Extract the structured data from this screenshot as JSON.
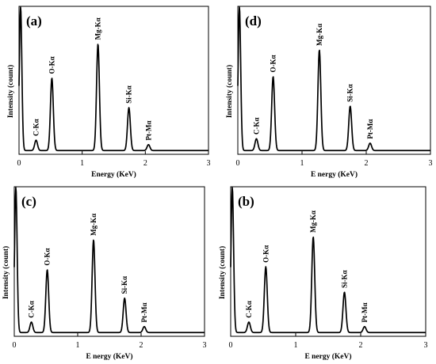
{
  "chart_data": [
    {
      "type": "line",
      "panel_label": "(a)",
      "xlabel": "Energy (KeV)",
      "ylabel": "Intensity (count)",
      "xlim": [
        0,
        3
      ],
      "xticks": [
        "0",
        "1",
        "2",
        "3"
      ],
      "grid": false,
      "series": [
        {
          "peaks": [
            {
              "label": "C-Kα",
              "energy": 0.27,
              "height": 0.07
            },
            {
              "label": "O-Kα",
              "energy": 0.52,
              "height": 0.49
            },
            {
              "label": "Mg-Kα",
              "energy": 1.25,
              "height": 0.72
            },
            {
              "label": "Si-Kα",
              "energy": 1.74,
              "height": 0.29
            },
            {
              "label": "Pt-Mα",
              "energy": 2.05,
              "height": 0.04
            }
          ]
        }
      ]
    },
    {
      "type": "line",
      "panel_label": "(d)",
      "xlabel": "E nergy (KeV)",
      "ylabel": "Intensity (count)",
      "xlim": [
        0,
        3
      ],
      "xticks": [
        "0",
        "1",
        "2",
        "3"
      ],
      "grid": false,
      "series": [
        {
          "peaks": [
            {
              "label": "C-Kα",
              "energy": 0.29,
              "height": 0.08
            },
            {
              "label": "O-Kα",
              "energy": 0.55,
              "height": 0.5
            },
            {
              "label": "Mg-Kα",
              "energy": 1.27,
              "height": 0.68
            },
            {
              "label": "Si-Kα",
              "energy": 1.75,
              "height": 0.3
            },
            {
              "label": "Pt-Mα",
              "energy": 2.06,
              "height": 0.05
            }
          ]
        }
      ]
    },
    {
      "type": "line",
      "panel_label": "(c)",
      "xlabel": "E nergy (KeV)",
      "ylabel": "Intensity (count)",
      "xlim": [
        0,
        3
      ],
      "xticks": [
        "0",
        "1",
        "2",
        "3"
      ],
      "grid": false,
      "series": [
        {
          "peaks": [
            {
              "label": "C-Kα",
              "energy": 0.27,
              "height": 0.07
            },
            {
              "label": "O-Kα",
              "energy": 0.52,
              "height": 0.42
            },
            {
              "label": "Mg-Kα",
              "energy": 1.25,
              "height": 0.62
            },
            {
              "label": "Si-Kα",
              "energy": 1.74,
              "height": 0.23
            },
            {
              "label": "Pt-Mα",
              "energy": 2.05,
              "height": 0.04
            }
          ]
        }
      ]
    },
    {
      "type": "line",
      "panel_label": "(b)",
      "xlabel": "E nergy (KeV)",
      "ylabel": "Intensity (count)",
      "xlim": [
        0,
        3
      ],
      "xticks": [
        "0",
        "1",
        "2",
        "3"
      ],
      "grid": false,
      "series": [
        {
          "peaks": [
            {
              "label": "C-Kα",
              "energy": 0.28,
              "height": 0.07
            },
            {
              "label": "O-Kα",
              "energy": 0.54,
              "height": 0.44
            },
            {
              "label": "Mg-Kα",
              "energy": 1.27,
              "height": 0.64
            },
            {
              "label": "Si-Kα",
              "energy": 1.75,
              "height": 0.27
            },
            {
              "label": "Pt-Mα",
              "energy": 2.06,
              "height": 0.04
            }
          ]
        }
      ]
    }
  ]
}
